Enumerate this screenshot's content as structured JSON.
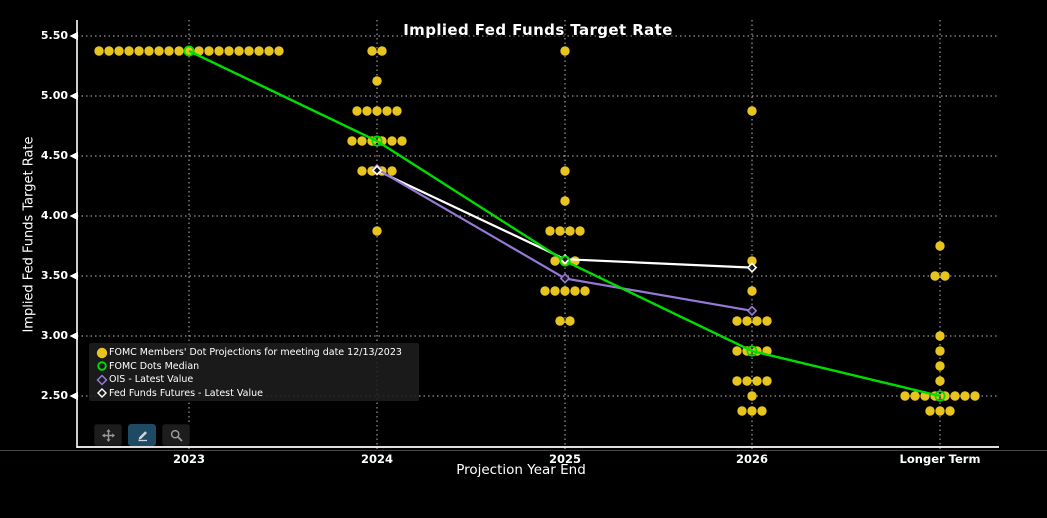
{
  "title": "Implied Fed Funds Target Rate",
  "axes": {
    "y_label": "Implied Fed Funds Target Rate",
    "x_label": "Projection Year End",
    "y_ticks": [
      "5.50",
      "5.00",
      "4.50",
      "4.00",
      "3.50",
      "3.00",
      "2.50"
    ],
    "x_ticks": [
      "2023",
      "2024",
      "2025",
      "2026",
      "Longer Term"
    ]
  },
  "colors": {
    "background": "#000000",
    "dots": "#e8c41f",
    "median_line": "#00dd00",
    "ois_line": "#9678d6",
    "futures_line": "#ffffff",
    "grid": "#b8b8b8",
    "toolbar_active": "#1e4a63"
  },
  "legend": {
    "items": [
      {
        "marker": "filled-circle",
        "color": "#e8c41f",
        "label": "FOMC Members' Dot Projections for meeting date 12/13/2023"
      },
      {
        "marker": "open-circle",
        "color": "#00dd00",
        "label": "FOMC Dots Median"
      },
      {
        "marker": "open-diamond",
        "color": "#9678d6",
        "label": "OIS - Latest Value"
      },
      {
        "marker": "open-diamond",
        "color": "#ffffff",
        "label": "Fed Funds Futures - Latest Value"
      }
    ]
  },
  "toolbar": {
    "buttons": [
      {
        "icon": "move-icon",
        "active": false
      },
      {
        "icon": "pencil-icon",
        "active": true
      },
      {
        "icon": "magnifier-icon",
        "active": false
      }
    ]
  },
  "chart_data": {
    "type": "scatter",
    "title": "Implied Fed Funds Target Rate",
    "xlabel": "Projection Year End",
    "ylabel": "Implied Fed Funds Target Rate",
    "categories": [
      "2023",
      "2024",
      "2025",
      "2026",
      "Longer Term"
    ],
    "ylim": [
      2.05,
      5.65
    ],
    "grid": true,
    "legend_position": "lower-left",
    "dots_meeting_date": "12/13/2023",
    "dots_by_year": [
      {
        "year": "2023",
        "levels": [
          {
            "rate": 5.375,
            "count": 19
          }
        ]
      },
      {
        "year": "2024",
        "levels": [
          {
            "rate": 5.375,
            "count": 2
          },
          {
            "rate": 5.125,
            "count": 1
          },
          {
            "rate": 4.875,
            "count": 5
          },
          {
            "rate": 4.625,
            "count": 6
          },
          {
            "rate": 4.375,
            "count": 4
          },
          {
            "rate": 3.875,
            "count": 1
          }
        ]
      },
      {
        "year": "2025",
        "levels": [
          {
            "rate": 5.375,
            "count": 1
          },
          {
            "rate": 4.375,
            "count": 1
          },
          {
            "rate": 4.125,
            "count": 1
          },
          {
            "rate": 3.875,
            "count": 4
          },
          {
            "rate": 3.625,
            "count": 3
          },
          {
            "rate": 3.375,
            "count": 5
          },
          {
            "rate": 3.125,
            "count": 2
          }
        ]
      },
      {
        "year": "2026",
        "levels": [
          {
            "rate": 4.875,
            "count": 1
          },
          {
            "rate": 3.625,
            "count": 1
          },
          {
            "rate": 3.375,
            "count": 1
          },
          {
            "rate": 3.125,
            "count": 4
          },
          {
            "rate": 2.875,
            "count": 4
          },
          {
            "rate": 2.625,
            "count": 4
          },
          {
            "rate": 2.5,
            "count": 1
          },
          {
            "rate": 2.375,
            "count": 3
          }
        ]
      },
      {
        "year": "Longer Term",
        "levels": [
          {
            "rate": 3.75,
            "count": 1
          },
          {
            "rate": 3.5,
            "count": 2
          },
          {
            "rate": 3.0,
            "count": 1
          },
          {
            "rate": 2.875,
            "count": 1
          },
          {
            "rate": 2.75,
            "count": 1
          },
          {
            "rate": 2.625,
            "count": 1
          },
          {
            "rate": 2.5,
            "count": 8
          },
          {
            "rate": 2.375,
            "count": 3
          }
        ]
      }
    ],
    "series": [
      {
        "name": "FOMC Dots Median",
        "marker": "open-circle",
        "color_key": "median_line",
        "points": [
          {
            "x": "2023",
            "y": 5.375
          },
          {
            "x": "2024",
            "y": 4.625
          },
          {
            "x": "2025",
            "y": 3.625
          },
          {
            "x": "2026",
            "y": 2.875
          },
          {
            "x": "Longer Term",
            "y": 2.5
          }
        ]
      },
      {
        "name": "Fed Funds Futures - Latest Value",
        "marker": "open-diamond",
        "color_key": "futures_line",
        "points": [
          {
            "x": "2024",
            "y": 4.38
          },
          {
            "x": "2025",
            "y": 3.64
          },
          {
            "x": "2026",
            "y": 3.57
          }
        ]
      },
      {
        "name": "OIS - Latest Value",
        "marker": "open-diamond",
        "color_key": "ois_line",
        "points": [
          {
            "x": "2024",
            "y": 4.39
          },
          {
            "x": "2025",
            "y": 3.48
          },
          {
            "x": "2026",
            "y": 3.21
          }
        ]
      }
    ]
  }
}
